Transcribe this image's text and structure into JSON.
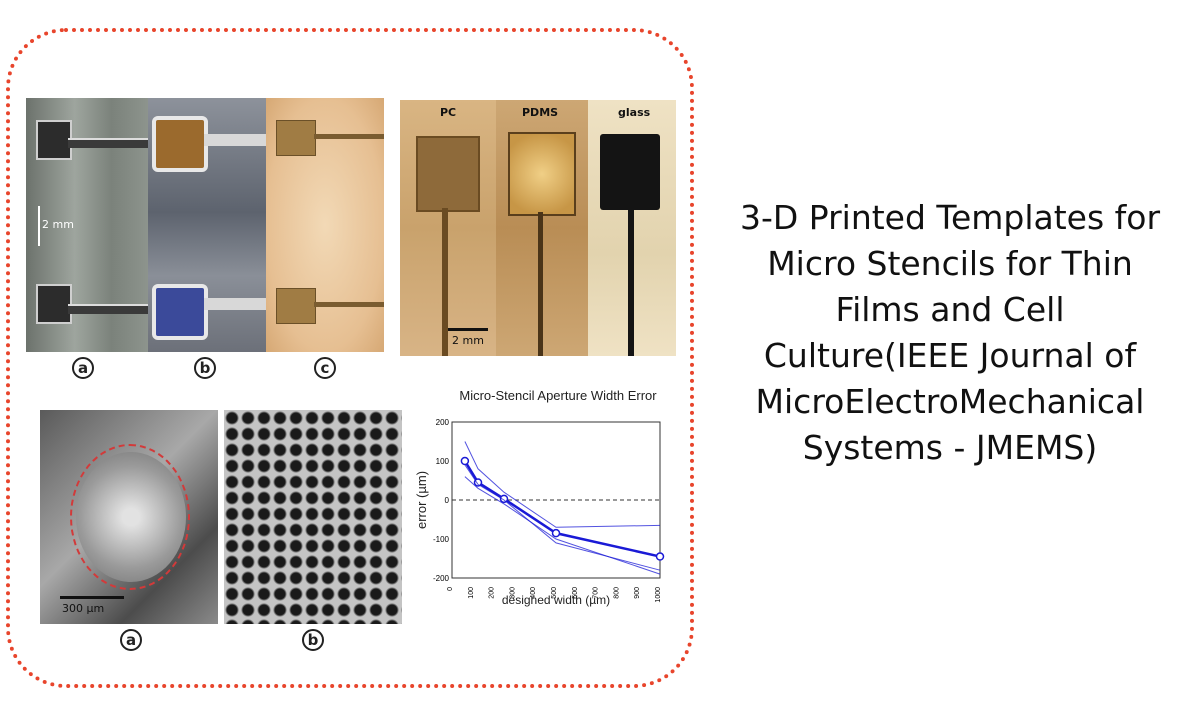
{
  "figures": {
    "top_left": {
      "scale_label": "2 mm",
      "panel_labels": [
        "a",
        "b",
        "c"
      ]
    },
    "top_right": {
      "material_labels": [
        "PC",
        "PDMS",
        "glass"
      ],
      "scale_label": "2 mm"
    },
    "bottom_left": {
      "scale_label": "300 µm",
      "panel_labels": [
        "a",
        "b"
      ]
    }
  },
  "chart_data": {
    "type": "line",
    "title": "Micro-Stencil Aperture Width Error",
    "xlabel": "designed width (µm)",
    "ylabel": "error (µm)",
    "xlim": [
      0,
      1000
    ],
    "ylim": [
      -200,
      200
    ],
    "xticks": [
      "0",
      "100",
      "200",
      "300",
      "400",
      "500",
      "600",
      "700",
      "800",
      "900",
      "1000"
    ],
    "yticks": [
      "200",
      "100",
      "0",
      "-100",
      "-200"
    ],
    "reference_line_y": 0,
    "series": [
      {
        "role": "mean",
        "x": [
          62,
          125,
          250,
          500,
          1000
        ],
        "y": [
          100,
          45,
          3,
          -85,
          -145
        ]
      },
      {
        "role": "thin",
        "x": [
          62,
          125,
          250,
          500,
          1000
        ],
        "y": [
          150,
          80,
          20,
          -70,
          -65
        ]
      },
      {
        "role": "thin",
        "x": [
          62,
          125,
          250,
          500,
          1000
        ],
        "y": [
          60,
          30,
          -10,
          -100,
          -190
        ]
      },
      {
        "role": "thin",
        "x": [
          62,
          125,
          250,
          500,
          1000
        ],
        "y": [
          90,
          40,
          0,
          -110,
          -180
        ]
      }
    ]
  },
  "caption": {
    "lines": [
      "3-D Printed Templates for",
      "Micro Stencils for Thin",
      "Films and Cell",
      "Culture(IEEE Journal of",
      "MicroElectroMechanical",
      "Systems - JMEMS)"
    ]
  },
  "colors": {
    "frame_border": "#e8452c",
    "chart_line": "#1a1ad6",
    "dashed_circle": "#d23a3a"
  }
}
